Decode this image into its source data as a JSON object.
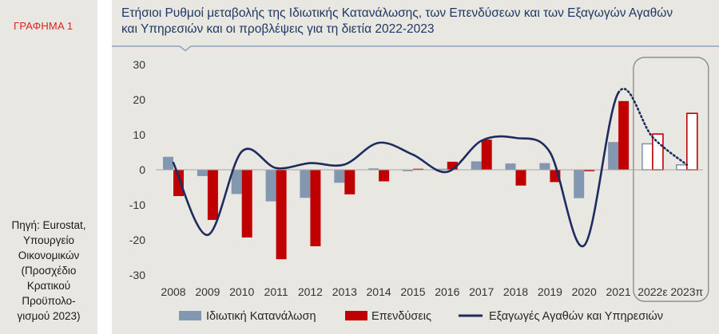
{
  "figure_label": "ΓΡΑΦΗΜΑ 1",
  "source_lines": [
    "Πηγή: Eurostat,",
    "Υπουργείο",
    "Οικονομικών",
    "(Προσχέδιο",
    "Κρατικού",
    "Προϋπολο-",
    "γισμού 2023)"
  ],
  "colors": {
    "figure_label": "#e3211c",
    "title": "#1f3864",
    "panel_background": "#e8e7e2",
    "title_rule": "#8fa4c0",
    "zero_line": "#a6a6a6",
    "forecast_box": "#7f7f7f"
  },
  "chart_data": {
    "type": "bar",
    "title_lines": [
      "Ετήσιοι Ρυθμοί μεταβολής της Ιδιωτικής Κατανάλωσης, των Επενδύσεων και των Εξαγωγών Αγαθών",
      "και Υπηρεσιών και οι προβλέψεις για τη διετία 2022-2023"
    ],
    "categories": [
      "2008",
      "2009",
      "2010",
      "2011",
      "2012",
      "2013",
      "2014",
      "2015",
      "2016",
      "2017",
      "2018",
      "2019",
      "2020",
      "2021",
      "2022ε",
      "2023π"
    ],
    "forecast_categories": [
      "2022ε",
      "2023π"
    ],
    "ylim": [
      -30,
      30
    ],
    "yticks": [
      30,
      20,
      10,
      0,
      -10,
      -20,
      -30
    ],
    "grid": false,
    "legend_position": "bottom",
    "series": [
      {
        "name": "Ιδιωτική Κατανάλωση",
        "type": "bar",
        "color": "#8497b0",
        "values": [
          3.7,
          -1.8,
          -6.9,
          -9.0,
          -8.0,
          -3.7,
          0.4,
          -0.4,
          0.3,
          2.4,
          1.8,
          1.9,
          -8.1,
          7.9,
          7.4,
          1.4
        ]
      },
      {
        "name": "Επενδύσεις",
        "type": "bar",
        "color": "#c00000",
        "values": [
          -7.5,
          -14.3,
          -19.3,
          -25.5,
          -21.8,
          -7.0,
          -3.3,
          0.3,
          2.3,
          8.6,
          -4.5,
          -3.5,
          -0.4,
          19.6,
          10.2,
          16.1
        ]
      },
      {
        "name": "Εξαγωγές Αγαθών και Υπηρεσιών",
        "type": "line",
        "smooth": true,
        "color": "#1d2b5e",
        "values": [
          2.0,
          -18.6,
          5.2,
          0.5,
          1.9,
          1.5,
          7.7,
          4.3,
          -0.6,
          8.3,
          9.1,
          5.0,
          -21.6,
          22.0,
          9.3,
          1.4
        ]
      }
    ]
  }
}
